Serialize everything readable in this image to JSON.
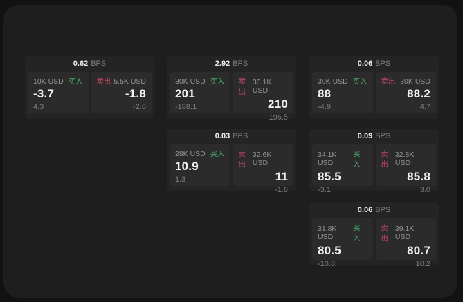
{
  "labels": {
    "bps_unit": "BPS",
    "buy": "买入",
    "sell": "卖出"
  },
  "colors": {
    "buy_green": "#4aa76b",
    "sell_red": "#c24560",
    "surface": "#1d1e1d",
    "card": "#242424",
    "panel": "#2b2b2b"
  },
  "cards": [
    {
      "bps": "0.62",
      "buy": {
        "amount": "10K USD",
        "main": "-3.7",
        "sub": "4.3"
      },
      "sell": {
        "amount": "5.5K USD",
        "main": "-1.8",
        "sub": "-2.6"
      }
    },
    {
      "bps": "2.92",
      "buy": {
        "amount": "30K USD",
        "main": "201",
        "sub": "-188.1"
      },
      "sell": {
        "amount": "30.1K USD",
        "main": "210",
        "sub": "196.5"
      }
    },
    {
      "bps": "0.06",
      "buy": {
        "amount": "30K USD",
        "main": "88",
        "sub": "-4.9"
      },
      "sell": {
        "amount": "30K USD",
        "main": "88.2",
        "sub": "4.7"
      }
    },
    {
      "bps": "0.03",
      "buy": {
        "amount": "28K USD",
        "main": "10.9",
        "sub": "1.3"
      },
      "sell": {
        "amount": "32.6K USD",
        "main": "11",
        "sub": "-1.8"
      }
    },
    {
      "bps": "0.09",
      "buy": {
        "amount": "34.1K USD",
        "main": "85.5",
        "sub": "-3.1"
      },
      "sell": {
        "amount": "32.8K USD",
        "main": "85.8",
        "sub": "3.0"
      }
    },
    {
      "bps": "0.06",
      "buy": {
        "amount": "31.8K USD",
        "main": "80.5",
        "sub": "-10.8"
      },
      "sell": {
        "amount": "39.1K USD",
        "main": "80.7",
        "sub": "10.2"
      }
    }
  ]
}
